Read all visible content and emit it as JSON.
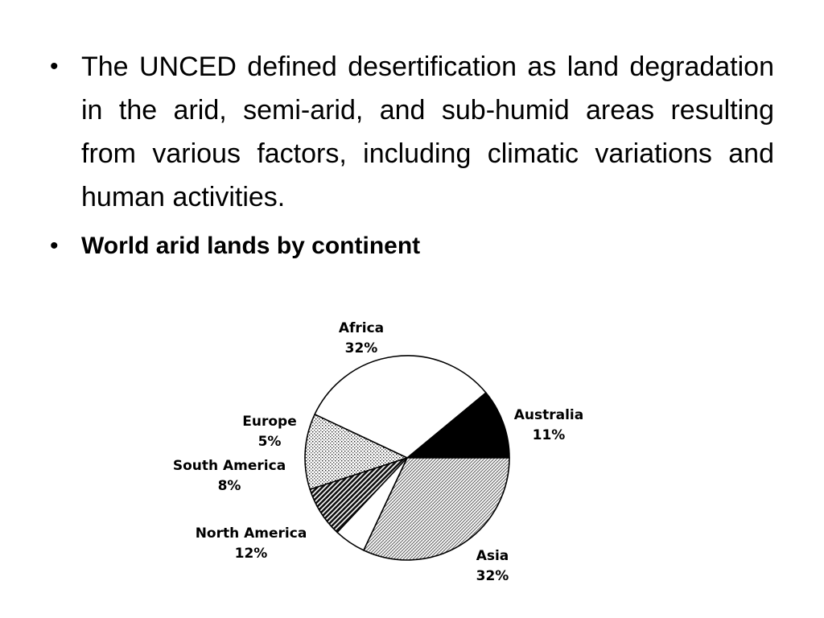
{
  "bullets": [
    {
      "text": "The UNCED defined desertification as land degradation in the arid, semi-arid, and sub-humid areas resulting from various factors, including climatic variations and human activities.",
      "bold": false
    },
    {
      "text": "World arid lands by continent",
      "bold": true
    }
  ],
  "bullet_symbol": "•",
  "chart_data": {
    "type": "pie",
    "title": "",
    "slices": [
      {
        "label": "Australia",
        "value": 11,
        "value_label": "11%",
        "pattern": "solid-black"
      },
      {
        "label": "Asia",
        "value": 32,
        "value_label": "32%",
        "pattern": "white"
      },
      {
        "label": "North America",
        "value": 12,
        "value_label": "12%",
        "pattern": "dotted-grid"
      },
      {
        "label": "South America",
        "value": 8,
        "value_label": "8%",
        "pattern": "dark-diagonal"
      },
      {
        "label": "Europe",
        "value": 5,
        "value_label": "5%",
        "pattern": "white"
      },
      {
        "label": "Africa",
        "value": 32,
        "value_label": "32%",
        "pattern": "light-diagonal-hatch"
      }
    ],
    "start_angle_deg": 0,
    "direction": "clockwise",
    "labels_outside": true,
    "legend": "none"
  }
}
